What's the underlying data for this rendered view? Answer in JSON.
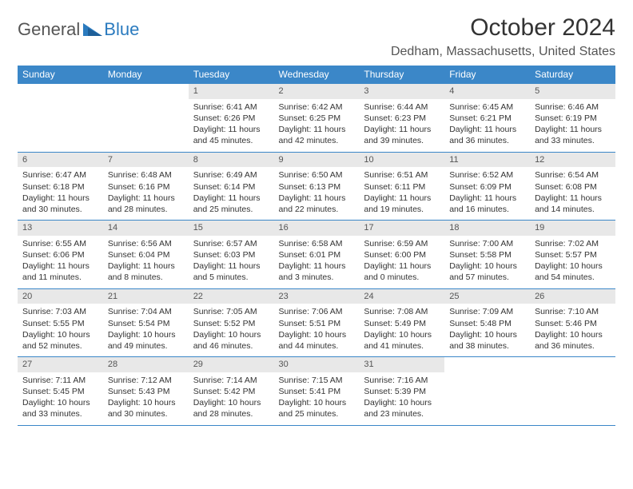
{
  "logo": {
    "general": "General",
    "blue": "Blue"
  },
  "title": "October 2024",
  "location": "Dedham, Massachusetts, United States",
  "weekday_headers": [
    "Sunday",
    "Monday",
    "Tuesday",
    "Wednesday",
    "Thursday",
    "Friday",
    "Saturday"
  ],
  "colors": {
    "header_bg": "#3b87c8",
    "header_text": "#ffffff",
    "daynum_bg": "#e8e8e8",
    "text": "#333333",
    "logo_blue": "#2b7bbf"
  },
  "weeks": [
    [
      {
        "num": "",
        "sunrise": "",
        "sunset": "",
        "daylight": ""
      },
      {
        "num": "",
        "sunrise": "",
        "sunset": "",
        "daylight": ""
      },
      {
        "num": "1",
        "sunrise": "Sunrise: 6:41 AM",
        "sunset": "Sunset: 6:26 PM",
        "daylight": "Daylight: 11 hours and 45 minutes."
      },
      {
        "num": "2",
        "sunrise": "Sunrise: 6:42 AM",
        "sunset": "Sunset: 6:25 PM",
        "daylight": "Daylight: 11 hours and 42 minutes."
      },
      {
        "num": "3",
        "sunrise": "Sunrise: 6:44 AM",
        "sunset": "Sunset: 6:23 PM",
        "daylight": "Daylight: 11 hours and 39 minutes."
      },
      {
        "num": "4",
        "sunrise": "Sunrise: 6:45 AM",
        "sunset": "Sunset: 6:21 PM",
        "daylight": "Daylight: 11 hours and 36 minutes."
      },
      {
        "num": "5",
        "sunrise": "Sunrise: 6:46 AM",
        "sunset": "Sunset: 6:19 PM",
        "daylight": "Daylight: 11 hours and 33 minutes."
      }
    ],
    [
      {
        "num": "6",
        "sunrise": "Sunrise: 6:47 AM",
        "sunset": "Sunset: 6:18 PM",
        "daylight": "Daylight: 11 hours and 30 minutes."
      },
      {
        "num": "7",
        "sunrise": "Sunrise: 6:48 AM",
        "sunset": "Sunset: 6:16 PM",
        "daylight": "Daylight: 11 hours and 28 minutes."
      },
      {
        "num": "8",
        "sunrise": "Sunrise: 6:49 AM",
        "sunset": "Sunset: 6:14 PM",
        "daylight": "Daylight: 11 hours and 25 minutes."
      },
      {
        "num": "9",
        "sunrise": "Sunrise: 6:50 AM",
        "sunset": "Sunset: 6:13 PM",
        "daylight": "Daylight: 11 hours and 22 minutes."
      },
      {
        "num": "10",
        "sunrise": "Sunrise: 6:51 AM",
        "sunset": "Sunset: 6:11 PM",
        "daylight": "Daylight: 11 hours and 19 minutes."
      },
      {
        "num": "11",
        "sunrise": "Sunrise: 6:52 AM",
        "sunset": "Sunset: 6:09 PM",
        "daylight": "Daylight: 11 hours and 16 minutes."
      },
      {
        "num": "12",
        "sunrise": "Sunrise: 6:54 AM",
        "sunset": "Sunset: 6:08 PM",
        "daylight": "Daylight: 11 hours and 14 minutes."
      }
    ],
    [
      {
        "num": "13",
        "sunrise": "Sunrise: 6:55 AM",
        "sunset": "Sunset: 6:06 PM",
        "daylight": "Daylight: 11 hours and 11 minutes."
      },
      {
        "num": "14",
        "sunrise": "Sunrise: 6:56 AM",
        "sunset": "Sunset: 6:04 PM",
        "daylight": "Daylight: 11 hours and 8 minutes."
      },
      {
        "num": "15",
        "sunrise": "Sunrise: 6:57 AM",
        "sunset": "Sunset: 6:03 PM",
        "daylight": "Daylight: 11 hours and 5 minutes."
      },
      {
        "num": "16",
        "sunrise": "Sunrise: 6:58 AM",
        "sunset": "Sunset: 6:01 PM",
        "daylight": "Daylight: 11 hours and 3 minutes."
      },
      {
        "num": "17",
        "sunrise": "Sunrise: 6:59 AM",
        "sunset": "Sunset: 6:00 PM",
        "daylight": "Daylight: 11 hours and 0 minutes."
      },
      {
        "num": "18",
        "sunrise": "Sunrise: 7:00 AM",
        "sunset": "Sunset: 5:58 PM",
        "daylight": "Daylight: 10 hours and 57 minutes."
      },
      {
        "num": "19",
        "sunrise": "Sunrise: 7:02 AM",
        "sunset": "Sunset: 5:57 PM",
        "daylight": "Daylight: 10 hours and 54 minutes."
      }
    ],
    [
      {
        "num": "20",
        "sunrise": "Sunrise: 7:03 AM",
        "sunset": "Sunset: 5:55 PM",
        "daylight": "Daylight: 10 hours and 52 minutes."
      },
      {
        "num": "21",
        "sunrise": "Sunrise: 7:04 AM",
        "sunset": "Sunset: 5:54 PM",
        "daylight": "Daylight: 10 hours and 49 minutes."
      },
      {
        "num": "22",
        "sunrise": "Sunrise: 7:05 AM",
        "sunset": "Sunset: 5:52 PM",
        "daylight": "Daylight: 10 hours and 46 minutes."
      },
      {
        "num": "23",
        "sunrise": "Sunrise: 7:06 AM",
        "sunset": "Sunset: 5:51 PM",
        "daylight": "Daylight: 10 hours and 44 minutes."
      },
      {
        "num": "24",
        "sunrise": "Sunrise: 7:08 AM",
        "sunset": "Sunset: 5:49 PM",
        "daylight": "Daylight: 10 hours and 41 minutes."
      },
      {
        "num": "25",
        "sunrise": "Sunrise: 7:09 AM",
        "sunset": "Sunset: 5:48 PM",
        "daylight": "Daylight: 10 hours and 38 minutes."
      },
      {
        "num": "26",
        "sunrise": "Sunrise: 7:10 AM",
        "sunset": "Sunset: 5:46 PM",
        "daylight": "Daylight: 10 hours and 36 minutes."
      }
    ],
    [
      {
        "num": "27",
        "sunrise": "Sunrise: 7:11 AM",
        "sunset": "Sunset: 5:45 PM",
        "daylight": "Daylight: 10 hours and 33 minutes."
      },
      {
        "num": "28",
        "sunrise": "Sunrise: 7:12 AM",
        "sunset": "Sunset: 5:43 PM",
        "daylight": "Daylight: 10 hours and 30 minutes."
      },
      {
        "num": "29",
        "sunrise": "Sunrise: 7:14 AM",
        "sunset": "Sunset: 5:42 PM",
        "daylight": "Daylight: 10 hours and 28 minutes."
      },
      {
        "num": "30",
        "sunrise": "Sunrise: 7:15 AM",
        "sunset": "Sunset: 5:41 PM",
        "daylight": "Daylight: 10 hours and 25 minutes."
      },
      {
        "num": "31",
        "sunrise": "Sunrise: 7:16 AM",
        "sunset": "Sunset: 5:39 PM",
        "daylight": "Daylight: 10 hours and 23 minutes."
      },
      {
        "num": "",
        "sunrise": "",
        "sunset": "",
        "daylight": ""
      },
      {
        "num": "",
        "sunrise": "",
        "sunset": "",
        "daylight": ""
      }
    ]
  ]
}
